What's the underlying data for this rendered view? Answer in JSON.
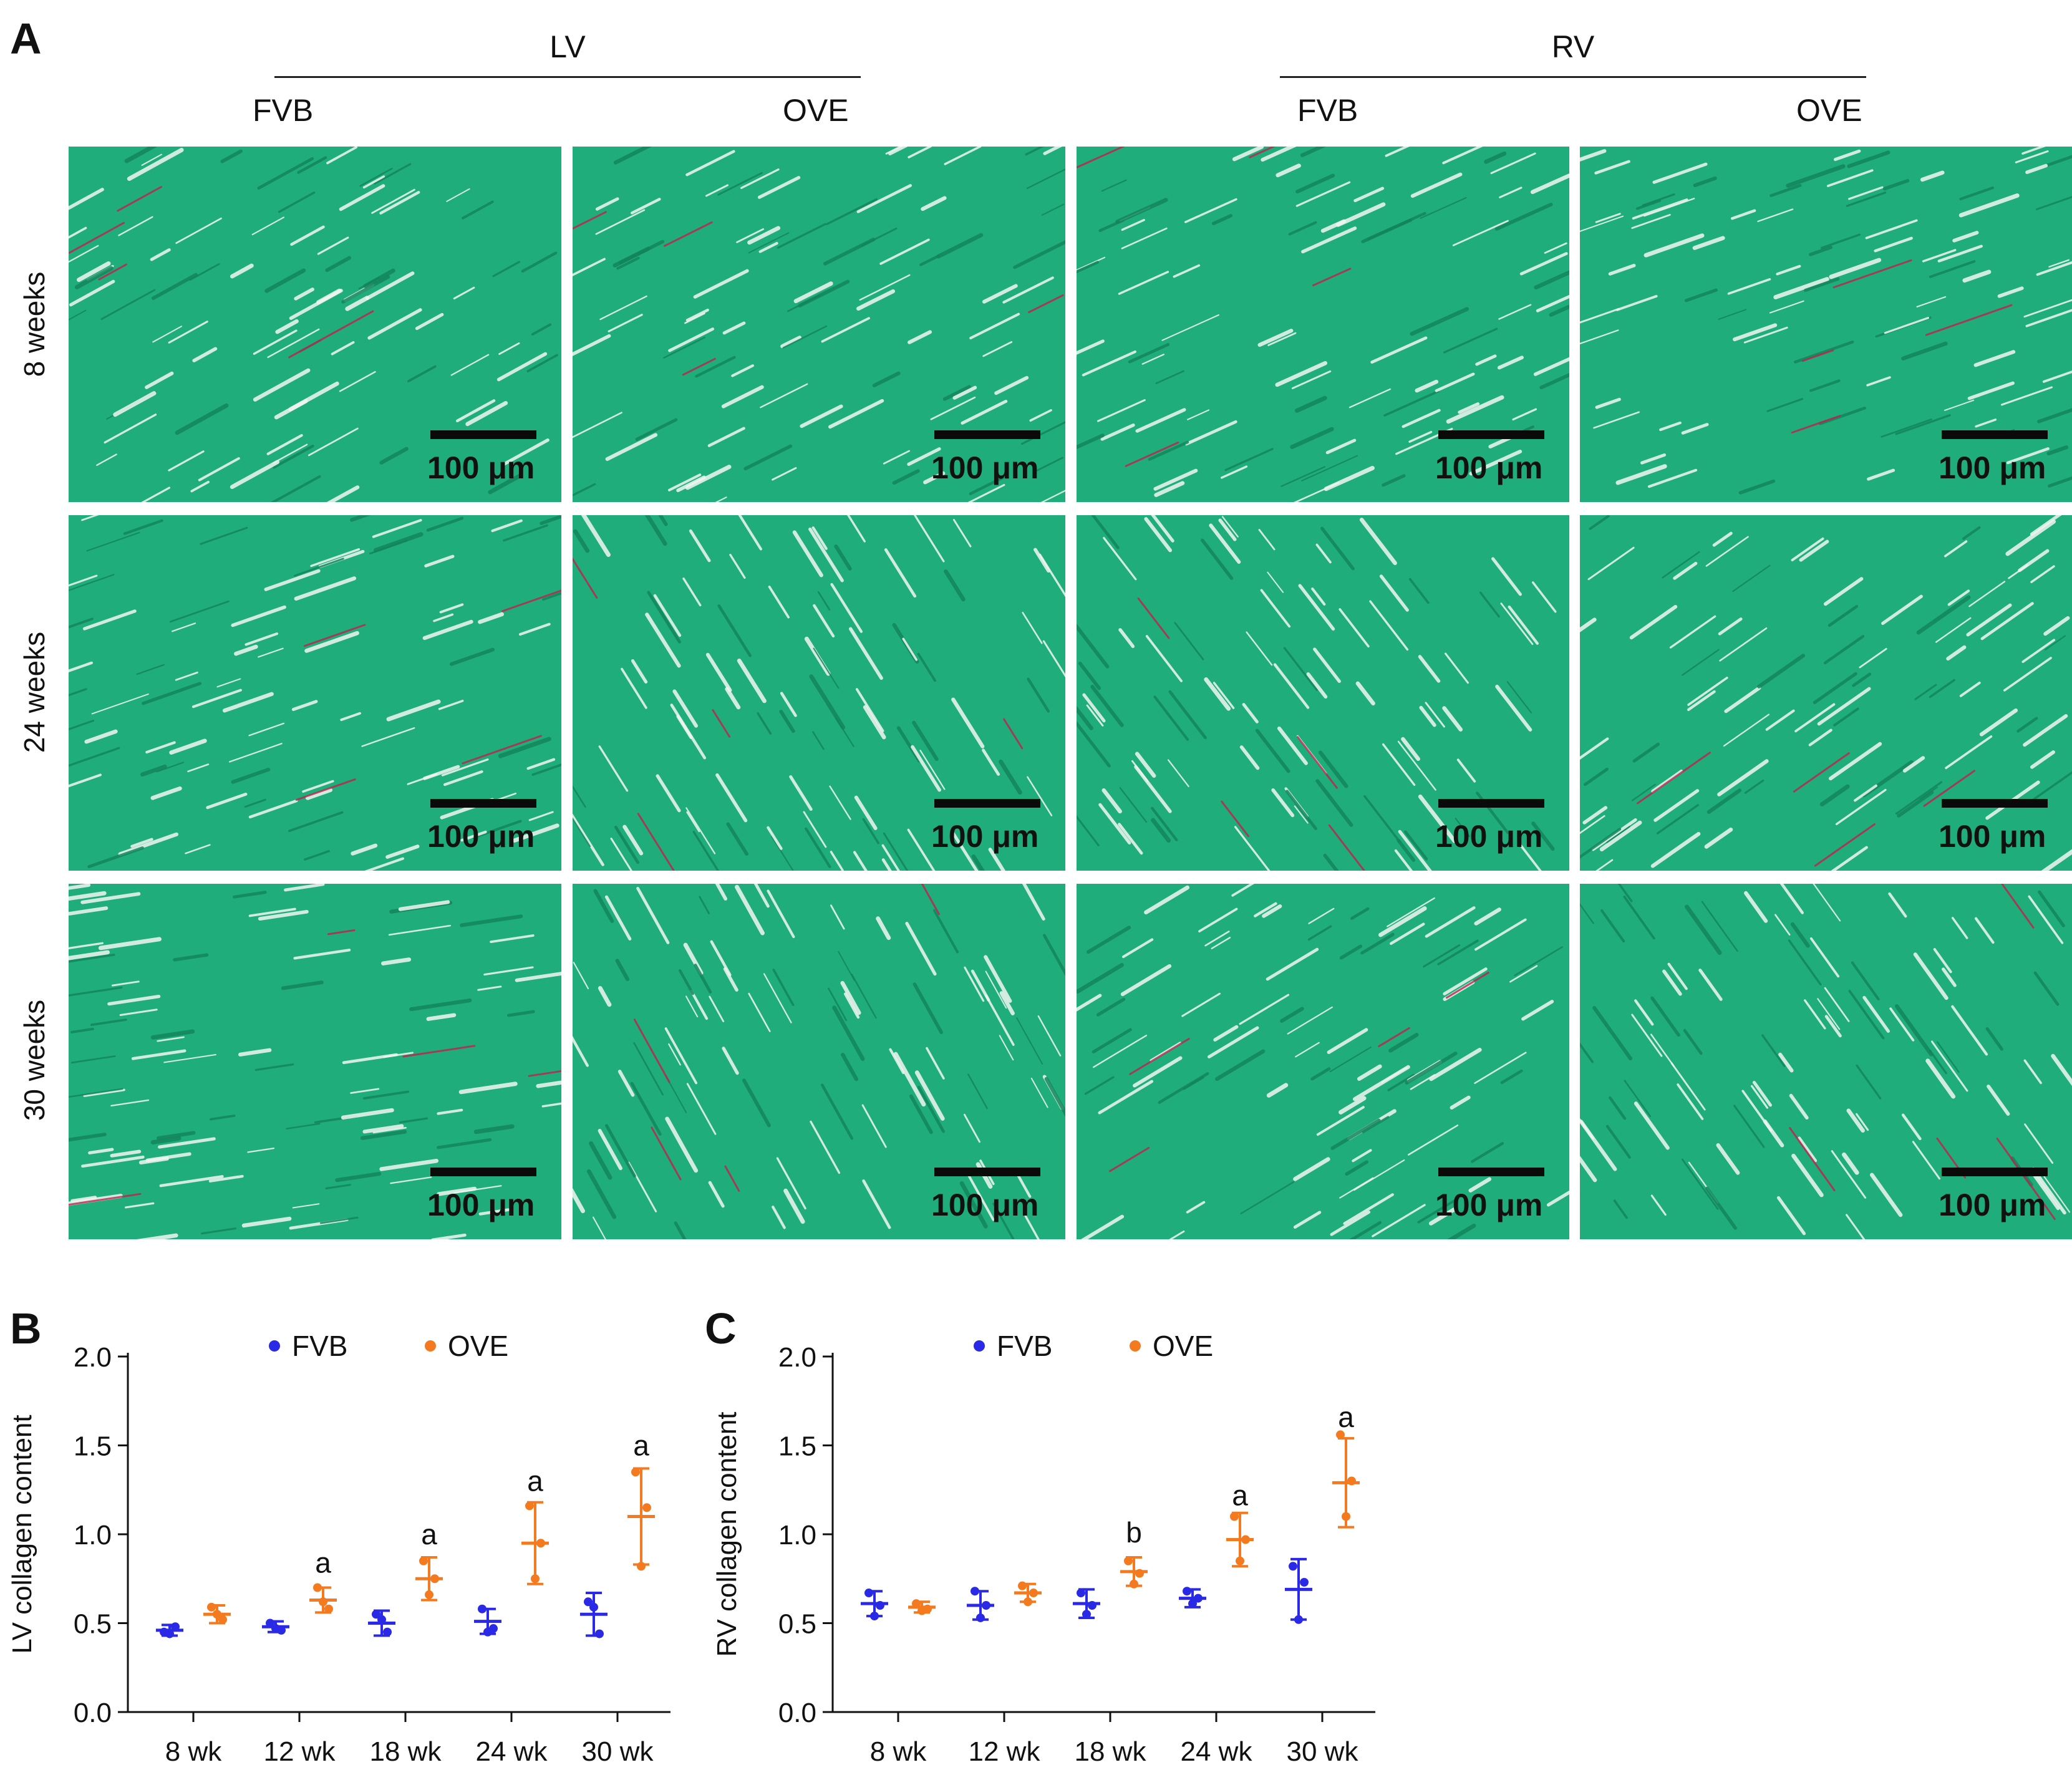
{
  "panel_a": {
    "letter": "A",
    "groups": [
      {
        "label": "LV",
        "strains": [
          "FVB",
          "OVE"
        ]
      },
      {
        "label": "RV",
        "strains": [
          "FVB",
          "OVE"
        ]
      }
    ],
    "rows": [
      "8 weeks",
      "24 weeks",
      "30 weeks"
    ],
    "scale_label": "100 μm",
    "colors": {
      "tissue": "#1fae7b",
      "tissue_dark": "#13855c",
      "gap": "#f2f6f2",
      "collagen": "#c0224e"
    }
  },
  "chart_data": [
    {
      "panel": "B",
      "type": "scatter",
      "ylabel": "LV collagen content",
      "ylim": [
        0.0,
        2.0
      ],
      "yticks": [
        "0.0",
        "0.5",
        "1.0",
        "1.5",
        "2.0"
      ],
      "categories": [
        "8 wk",
        "12 wk",
        "18 wk",
        "24 wk",
        "30 wk"
      ],
      "legend_position": "top",
      "series": [
        {
          "name": "FVB",
          "color": "#2a2ae6",
          "mean": [
            0.46,
            0.48,
            0.5,
            0.51,
            0.55
          ],
          "err": [
            0.03,
            0.03,
            0.07,
            0.07,
            0.12
          ],
          "points": [
            [
              0.45,
              0.48,
              0.44
            ],
            [
              0.5,
              0.46,
              0.47
            ],
            [
              0.55,
              0.45,
              0.52
            ],
            [
              0.58,
              0.47,
              0.45
            ],
            [
              0.62,
              0.44,
              0.59
            ]
          ]
        },
        {
          "name": "OVE",
          "color": "#f47a20",
          "mean": [
            0.55,
            0.63,
            0.75,
            0.95,
            1.1
          ],
          "err": [
            0.05,
            0.07,
            0.12,
            0.23,
            0.27
          ],
          "points": [
            [
              0.59,
              0.52,
              0.55
            ],
            [
              0.7,
              0.58,
              0.62
            ],
            [
              0.85,
              0.75,
              0.66
            ],
            [
              1.16,
              0.95,
              0.75
            ],
            [
              1.35,
              1.15,
              0.82
            ]
          ]
        }
      ],
      "annotations": [
        {
          "category": "12 wk",
          "text": "a",
          "y": 0.84
        },
        {
          "category": "18 wk",
          "text": "a",
          "y": 1.0
        },
        {
          "category": "24 wk",
          "text": "a",
          "y": 1.3
        },
        {
          "category": "30 wk",
          "text": "a",
          "y": 1.5
        }
      ]
    },
    {
      "panel": "C",
      "type": "scatter",
      "ylabel": "RV collagen content",
      "ylim": [
        0.0,
        2.0
      ],
      "yticks": [
        "0.0",
        "0.5",
        "1.0",
        "1.5",
        "2.0"
      ],
      "categories": [
        "8 wk",
        "12 wk",
        "18 wk",
        "24 wk",
        "30 wk"
      ],
      "legend_position": "top",
      "series": [
        {
          "name": "FVB",
          "color": "#2a2ae6",
          "mean": [
            0.61,
            0.6,
            0.61,
            0.64,
            0.69
          ],
          "err": [
            0.07,
            0.08,
            0.08,
            0.05,
            0.17
          ],
          "points": [
            [
              0.67,
              0.6,
              0.54
            ],
            [
              0.68,
              0.6,
              0.53
            ],
            [
              0.67,
              0.6,
              0.55
            ],
            [
              0.68,
              0.64,
              0.61
            ],
            [
              0.82,
              0.73,
              0.52
            ]
          ]
        },
        {
          "name": "OVE",
          "color": "#f47a20",
          "mean": [
            0.59,
            0.67,
            0.79,
            0.97,
            1.29
          ],
          "err": [
            0.03,
            0.05,
            0.08,
            0.15,
            0.25
          ],
          "points": [
            [
              0.61,
              0.58,
              0.57
            ],
            [
              0.71,
              0.67,
              0.62
            ],
            [
              0.85,
              0.78,
              0.72
            ],
            [
              1.1,
              0.97,
              0.85
            ],
            [
              1.56,
              1.3,
              1.1
            ]
          ]
        }
      ],
      "annotations": [
        {
          "category": "18 wk",
          "text": "b",
          "y": 1.01
        },
        {
          "category": "24 wk",
          "text": "a",
          "y": 1.22
        },
        {
          "category": "30 wk",
          "text": "a",
          "y": 1.66
        }
      ]
    }
  ]
}
